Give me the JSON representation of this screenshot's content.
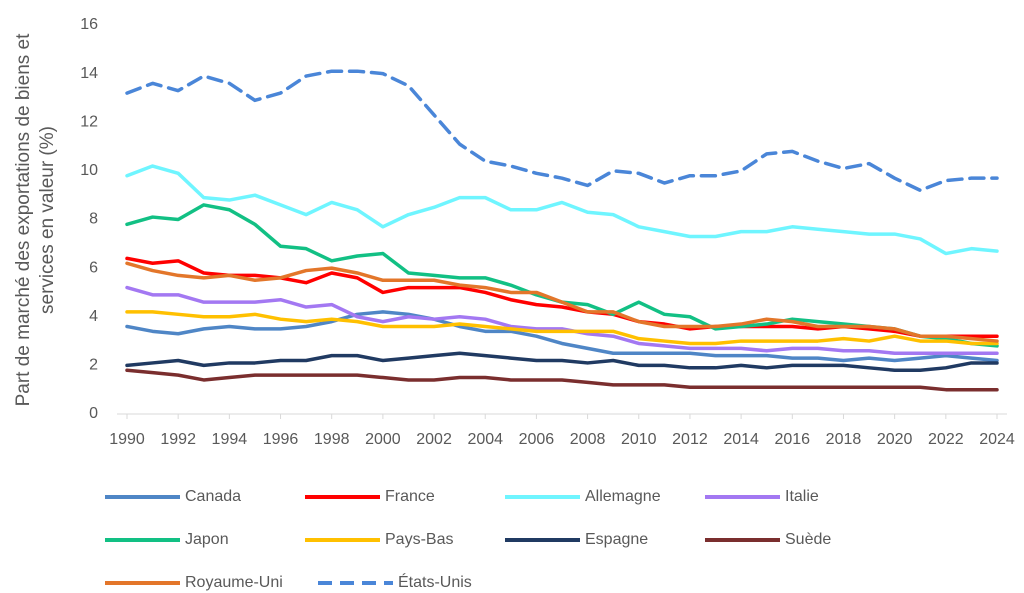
{
  "chart_data": {
    "type": "line",
    "ylabel": [
      "Part de marché des exportations de biens et",
      "services en valeur (%)"
    ],
    "x": [
      1990,
      1991,
      1992,
      1993,
      1994,
      1995,
      1996,
      1997,
      1998,
      1999,
      2000,
      2001,
      2002,
      2003,
      2004,
      2005,
      2006,
      2007,
      2008,
      2009,
      2010,
      2011,
      2012,
      2013,
      2014,
      2015,
      2016,
      2017,
      2018,
      2019,
      2020,
      2021,
      2022,
      2023,
      2024
    ],
    "xlim": [
      1990,
      2024
    ],
    "xticks": [
      1990,
      1992,
      1994,
      1996,
      1998,
      2000,
      2002,
      2004,
      2006,
      2008,
      2010,
      2012,
      2014,
      2016,
      2018,
      2020,
      2022,
      2024
    ],
    "ylim": [
      0,
      16
    ],
    "yticks": [
      0,
      2,
      4,
      6,
      8,
      10,
      12,
      14,
      16
    ],
    "grid": false,
    "series": [
      {
        "name": "Canada",
        "color": "#4f86c6",
        "values": [
          3.6,
          3.4,
          3.3,
          3.5,
          3.6,
          3.5,
          3.5,
          3.6,
          3.8,
          4.1,
          4.2,
          4.1,
          3.9,
          3.6,
          3.4,
          3.4,
          3.2,
          2.9,
          2.7,
          2.5,
          2.5,
          2.5,
          2.5,
          2.4,
          2.4,
          2.4,
          2.3,
          2.3,
          2.2,
          2.3,
          2.2,
          2.3,
          2.4,
          2.3,
          2.2
        ]
      },
      {
        "name": "France",
        "color": "#ff0000",
        "values": [
          6.4,
          6.2,
          6.3,
          5.8,
          5.7,
          5.7,
          5.6,
          5.4,
          5.8,
          5.6,
          5.0,
          5.2,
          5.2,
          5.2,
          5.0,
          4.7,
          4.5,
          4.4,
          4.2,
          4.1,
          3.8,
          3.7,
          3.5,
          3.6,
          3.6,
          3.6,
          3.6,
          3.5,
          3.6,
          3.5,
          3.4,
          3.2,
          3.2,
          3.2,
          3.2
        ]
      },
      {
        "name": "Allemagne",
        "color": "#6ff5ff",
        "values": [
          9.8,
          10.2,
          9.9,
          8.9,
          8.8,
          9.0,
          8.6,
          8.2,
          8.7,
          8.4,
          7.7,
          8.2,
          8.5,
          8.9,
          8.9,
          8.4,
          8.4,
          8.7,
          8.3,
          8.2,
          7.7,
          7.5,
          7.3,
          7.3,
          7.5,
          7.5,
          7.7,
          7.6,
          7.5,
          7.4,
          7.4,
          7.2,
          6.6,
          6.8,
          6.7
        ]
      },
      {
        "name": "Italie",
        "color": "#a378f2",
        "values": [
          5.2,
          4.9,
          4.9,
          4.6,
          4.6,
          4.6,
          4.7,
          4.4,
          4.5,
          4.0,
          3.8,
          4.0,
          3.9,
          4.0,
          3.9,
          3.6,
          3.5,
          3.5,
          3.3,
          3.2,
          2.9,
          2.8,
          2.7,
          2.7,
          2.7,
          2.6,
          2.7,
          2.7,
          2.6,
          2.6,
          2.5,
          2.5,
          2.5,
          2.5,
          2.5
        ]
      },
      {
        "name": "Japon",
        "color": "#12c084",
        "values": [
          7.8,
          8.1,
          8.0,
          8.6,
          8.4,
          7.8,
          6.9,
          6.8,
          6.3,
          6.5,
          6.6,
          5.8,
          5.7,
          5.6,
          5.6,
          5.3,
          4.9,
          4.6,
          4.5,
          4.1,
          4.6,
          4.1,
          4.0,
          3.5,
          3.6,
          3.7,
          3.9,
          3.8,
          3.7,
          3.6,
          3.5,
          3.2,
          3.1,
          2.9,
          2.8
        ]
      },
      {
        "name": "Pays-Bas",
        "color": "#ffc000",
        "values": [
          4.2,
          4.2,
          4.1,
          4.0,
          4.0,
          4.1,
          3.9,
          3.8,
          3.9,
          3.8,
          3.6,
          3.6,
          3.6,
          3.7,
          3.6,
          3.5,
          3.4,
          3.4,
          3.4,
          3.4,
          3.1,
          3.0,
          2.9,
          2.9,
          3.0,
          3.0,
          3.0,
          3.0,
          3.1,
          3.0,
          3.2,
          3.0,
          3.0,
          2.9,
          2.9
        ]
      },
      {
        "name": "Espagne",
        "color": "#203a62",
        "values": [
          2.0,
          2.1,
          2.2,
          2.0,
          2.1,
          2.1,
          2.2,
          2.2,
          2.4,
          2.4,
          2.2,
          2.3,
          2.4,
          2.5,
          2.4,
          2.3,
          2.2,
          2.2,
          2.1,
          2.2,
          2.0,
          2.0,
          1.9,
          1.9,
          2.0,
          1.9,
          2.0,
          2.0,
          2.0,
          1.9,
          1.8,
          1.8,
          1.9,
          2.1,
          2.1
        ]
      },
      {
        "name": "Suède",
        "color": "#7a2e2e",
        "values": [
          1.8,
          1.7,
          1.6,
          1.4,
          1.5,
          1.6,
          1.6,
          1.6,
          1.6,
          1.6,
          1.5,
          1.4,
          1.4,
          1.5,
          1.5,
          1.4,
          1.4,
          1.4,
          1.3,
          1.2,
          1.2,
          1.2,
          1.1,
          1.1,
          1.1,
          1.1,
          1.1,
          1.1,
          1.1,
          1.1,
          1.1,
          1.1,
          1.0,
          1.0,
          1.0
        ]
      },
      {
        "name": "Royaume-Uni",
        "color": "#e3762a",
        "values": [
          6.2,
          5.9,
          5.7,
          5.6,
          5.7,
          5.5,
          5.6,
          5.9,
          6.0,
          5.8,
          5.5,
          5.5,
          5.5,
          5.3,
          5.2,
          5.0,
          5.0,
          4.6,
          4.2,
          4.2,
          3.8,
          3.6,
          3.6,
          3.6,
          3.7,
          3.9,
          3.8,
          3.6,
          3.6,
          3.6,
          3.5,
          3.2,
          3.2,
          3.1,
          3.0
        ]
      },
      {
        "name": "États-Unis",
        "color": "#4a86d8",
        "dash": true,
        "values": [
          13.2,
          13.6,
          13.3,
          13.9,
          13.6,
          12.9,
          13.2,
          13.9,
          14.1,
          14.1,
          14.0,
          13.5,
          12.3,
          11.1,
          10.4,
          10.2,
          9.9,
          9.7,
          9.4,
          10.0,
          9.9,
          9.5,
          9.8,
          9.8,
          10.0,
          10.7,
          10.8,
          10.4,
          10.1,
          10.3,
          9.7,
          9.2,
          9.6,
          9.7,
          9.7
        ]
      }
    ]
  }
}
